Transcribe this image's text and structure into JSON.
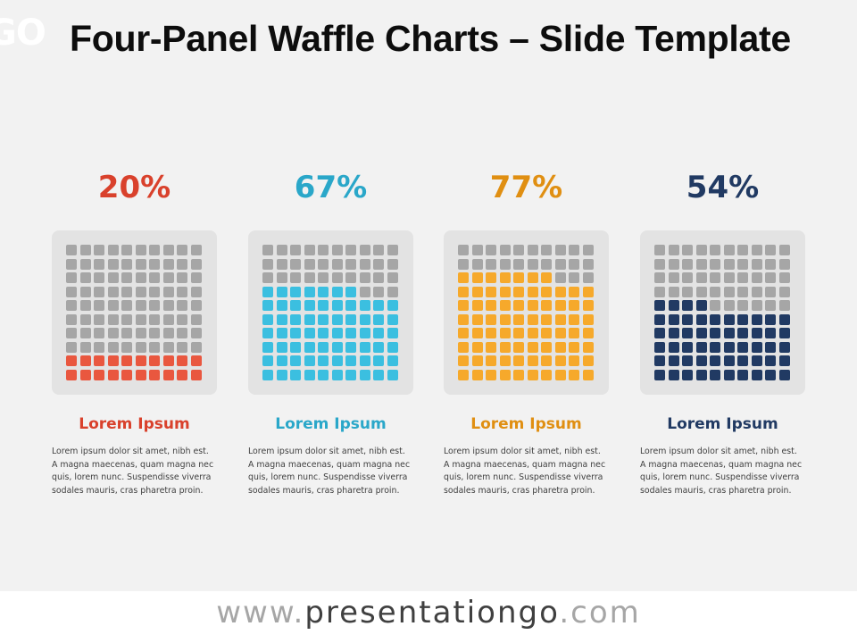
{
  "logo_fragment": "GO",
  "title": "Four-Panel Waffle Charts – Slide Template",
  "footer": {
    "www": "www.",
    "main": "presentationgo",
    "com": ".com"
  },
  "colors": {
    "background": "#f2f2f2",
    "empty_cell": "#a6a6a6",
    "card": "#e3e3e3"
  },
  "chart_data": [
    {
      "type": "waffle",
      "grid": [
        10,
        10
      ],
      "value": 20,
      "value_label": "20%",
      "color": "#e9573f",
      "label_color": "#d9412c",
      "label": "Lorem Ipsum",
      "description": "Lorem ipsum dolor sit amet, nibh est. A magna maecenas, quam magna nec quis, lorem nunc. Suspendisse viverra sodales mauris, cras pharetra proin."
    },
    {
      "type": "waffle",
      "grid": [
        10,
        10
      ],
      "value": 67,
      "value_label": "67%",
      "color": "#3bbfe0",
      "label_color": "#2aa7c9",
      "label": "Lorem Ipsum",
      "description": "Lorem ipsum dolor sit amet, nibh est. A magna maecenas, quam magna nec quis, lorem nunc. Suspendisse viverra sodales mauris, cras pharetra proin."
    },
    {
      "type": "waffle",
      "grid": [
        10,
        10
      ],
      "value": 77,
      "value_label": "77%",
      "color": "#f6a92b",
      "label_color": "#e08f12",
      "label": "Lorem Ipsum",
      "description": "Lorem ipsum dolor sit amet, nibh est. A magna maecenas, quam magna nec quis, lorem nunc. Suspendisse viverra sodales mauris, cras pharetra proin."
    },
    {
      "type": "waffle",
      "grid": [
        10,
        10
      ],
      "value": 54,
      "value_label": "54%",
      "color": "#213a63",
      "label_color": "#213a63",
      "label": "Lorem Ipsum",
      "description": "Lorem ipsum dolor sit amet, nibh est. A magna maecenas, quam magna nec quis, lorem nunc. Suspendisse viverra sodales mauris, cras pharetra proin."
    }
  ]
}
